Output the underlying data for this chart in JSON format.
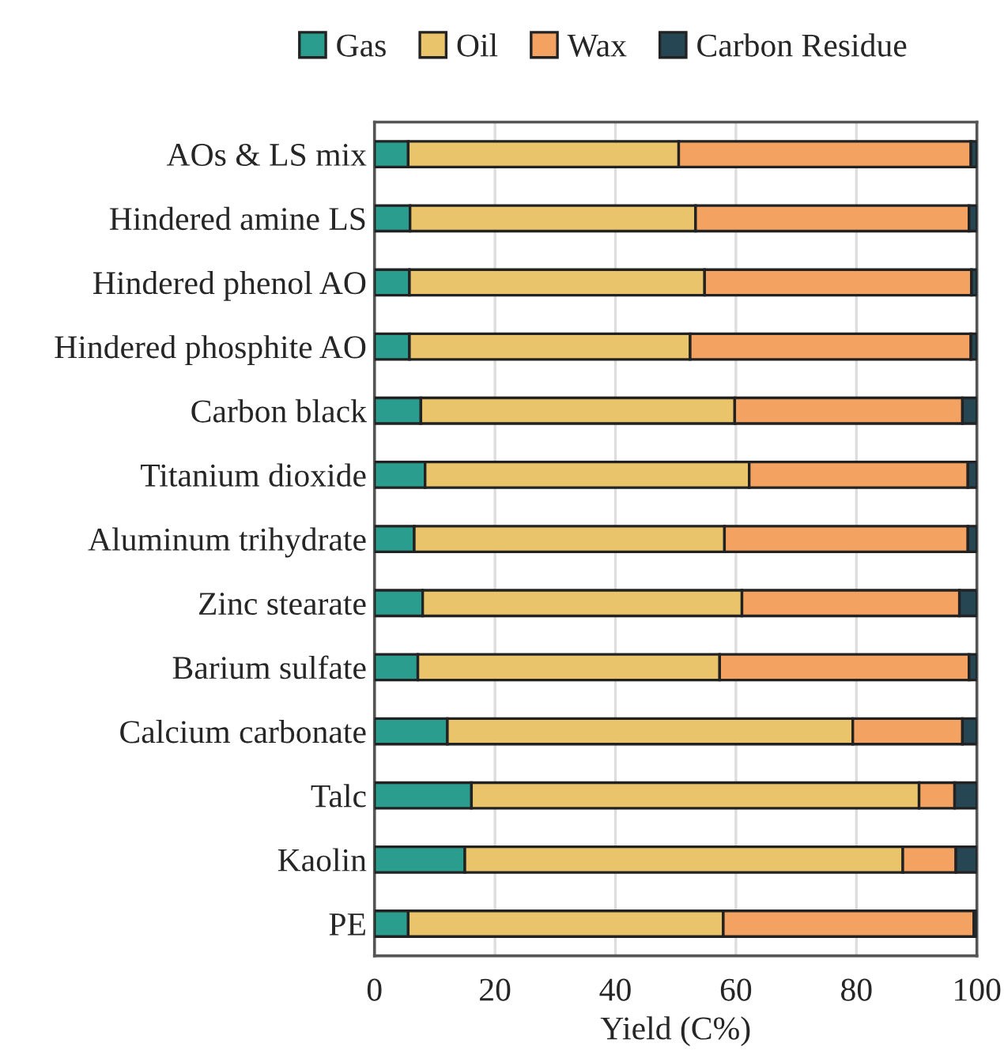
{
  "chart_data": {
    "type": "bar",
    "orientation": "horizontal",
    "stacked": true,
    "xlabel": "Yield (C%)",
    "categories": [
      "AOs & LS mix",
      "Hindered amine LS",
      "Hindered phenol AO",
      "Hindered phosphite AO",
      "Carbon black",
      "Titanium dioxide",
      "Aluminum trihydrate",
      "Zinc stearate",
      "Barium sulfate",
      "Calcium carbonate",
      "Talc",
      "Kaolin",
      "PE"
    ],
    "series": [
      {
        "name": "Gas",
        "color": "#2a9d8f",
        "values": [
          5.6,
          5.9,
          5.8,
          5.8,
          7.7,
          8.4,
          6.6,
          8.0,
          7.2,
          12.1,
          16.1,
          15.0,
          5.6
        ]
      },
      {
        "name": "Oil",
        "color": "#e9c46a",
        "values": [
          44.9,
          47.4,
          49.0,
          46.6,
          52.1,
          53.8,
          51.5,
          53.0,
          50.1,
          67.3,
          74.3,
          72.7,
          52.3
        ]
      },
      {
        "name": "Wax",
        "color": "#f4a261",
        "values": [
          48.5,
          45.4,
          44.3,
          46.6,
          37.8,
          36.3,
          40.4,
          36.1,
          41.4,
          18.2,
          5.9,
          8.8,
          41.6
        ]
      },
      {
        "name": "Carbon Residue",
        "color": "#264653",
        "values": [
          1.0,
          1.3,
          0.9,
          1.0,
          2.4,
          1.5,
          1.5,
          2.9,
          1.3,
          2.4,
          3.7,
          3.5,
          0.5
        ]
      }
    ],
    "xlim": [
      0,
      100
    ],
    "xticks": [
      0,
      20,
      40,
      60,
      80,
      100
    ],
    "grid": "x",
    "legend": "top"
  }
}
